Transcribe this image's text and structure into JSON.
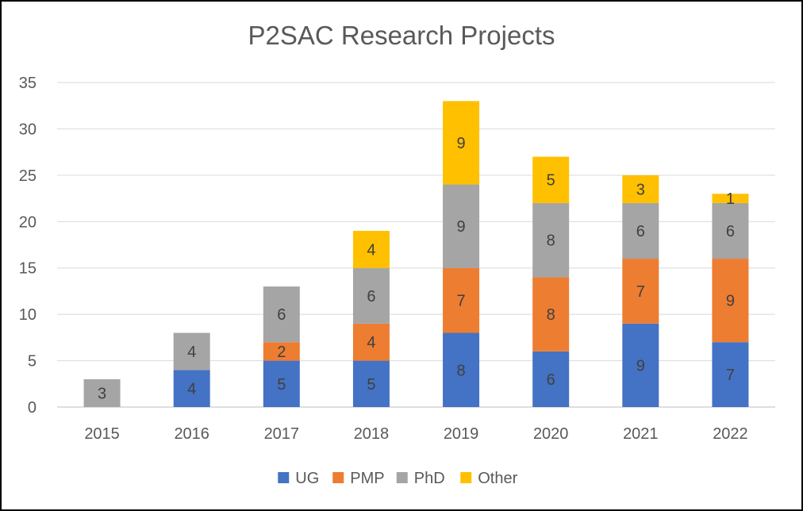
{
  "chart_data": {
    "type": "bar",
    "stacked": true,
    "title": "P2SAC Research Projects",
    "categories": [
      "2015",
      "2016",
      "2017",
      "2018",
      "2019",
      "2020",
      "2021",
      "2022"
    ],
    "series": [
      {
        "name": "UG",
        "color": "#4472C4",
        "values": [
          0,
          4,
          5,
          5,
          8,
          6,
          9,
          7
        ]
      },
      {
        "name": "PMP",
        "color": "#ED7D31",
        "values": [
          0,
          0,
          2,
          4,
          7,
          8,
          7,
          9
        ]
      },
      {
        "name": "PhD",
        "color": "#A5A5A5",
        "values": [
          3,
          4,
          6,
          6,
          9,
          8,
          6,
          6
        ]
      },
      {
        "name": "Other",
        "color": "#FFC000",
        "values": [
          0,
          0,
          0,
          4,
          9,
          5,
          3,
          1
        ]
      }
    ],
    "ylim": [
      0,
      35
    ],
    "yticks": [
      0,
      5,
      10,
      15,
      20,
      25,
      30,
      35
    ],
    "grid": true,
    "legend_position": "bottom"
  }
}
